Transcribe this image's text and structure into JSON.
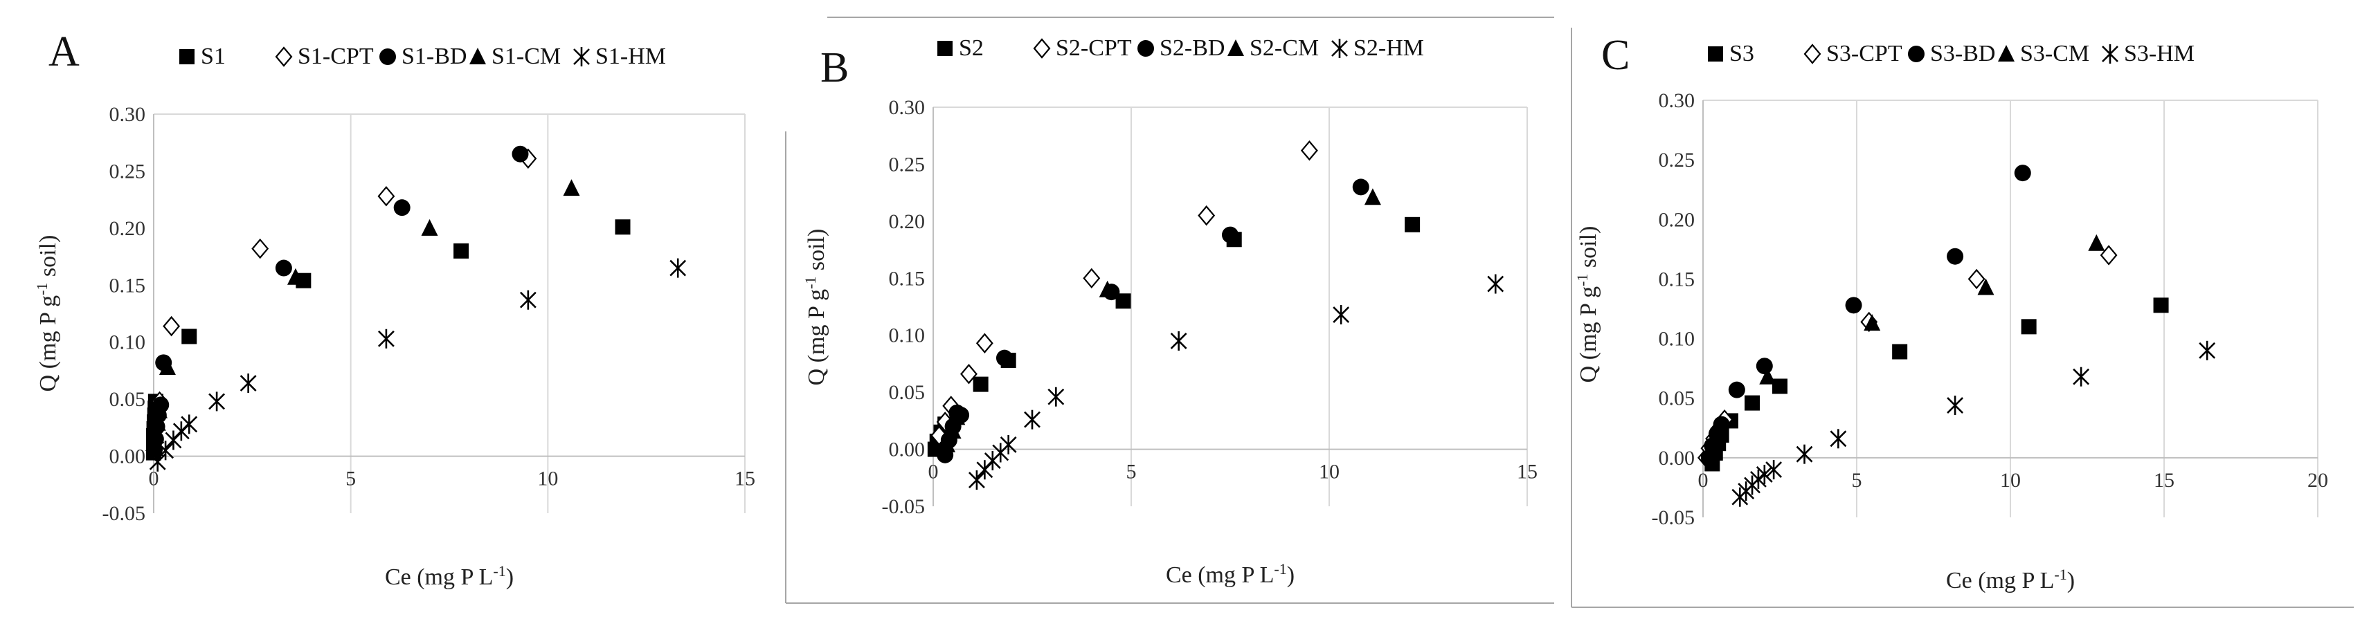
{
  "chart_data": [
    {
      "panel_label": "A",
      "type": "scatter",
      "xlabel": "Ce (mg P L",
      "xlabel_sup": "-1",
      "xlabel_end": ")",
      "ylabel": "Q (mg P g",
      "ylabel_sup": "-1",
      "ylabel_end": " soil)",
      "xlim": [
        0,
        15
      ],
      "ylim": [
        -0.05,
        0.3
      ],
      "xticks": [
        0,
        5,
        10,
        15
      ],
      "yticks": [
        -0.05,
        0.0,
        0.05,
        0.1,
        0.15,
        0.2,
        0.25,
        0.3
      ],
      "ytick_labels": [
        "-0.05",
        "0.00",
        "0.05",
        "0.10",
        "0.15",
        "0.20",
        "0.25",
        "0.30"
      ],
      "grid": "vertical",
      "legend_position": "top",
      "series": [
        {
          "name": "S1",
          "marker": "square",
          "points": [
            [
              0.0,
              0.003
            ],
            [
              0.0,
              0.008
            ],
            [
              0.0,
              0.013
            ],
            [
              0.0,
              0.018
            ],
            [
              0.01,
              0.024
            ],
            [
              0.02,
              0.03
            ],
            [
              0.03,
              0.036
            ],
            [
              0.04,
              0.042
            ],
            [
              0.05,
              0.048
            ],
            [
              0.9,
              0.105
            ],
            [
              3.8,
              0.154
            ],
            [
              7.8,
              0.18
            ],
            [
              11.9,
              0.201
            ]
          ]
        },
        {
          "name": "S1-CPT",
          "marker": "diamond",
          "points": [
            [
              0.01,
              0.005
            ],
            [
              0.03,
              0.016
            ],
            [
              0.06,
              0.027
            ],
            [
              0.1,
              0.038
            ],
            [
              0.15,
              0.048
            ],
            [
              0.45,
              0.114
            ],
            [
              2.7,
              0.182
            ],
            [
              5.9,
              0.228
            ],
            [
              9.5,
              0.261
            ]
          ]
        },
        {
          "name": "S1-BD",
          "marker": "circle",
          "points": [
            [
              0.02,
              0.006
            ],
            [
              0.05,
              0.015
            ],
            [
              0.08,
              0.026
            ],
            [
              0.12,
              0.036
            ],
            [
              0.18,
              0.045
            ],
            [
              0.25,
              0.082
            ],
            [
              3.3,
              0.165
            ],
            [
              6.3,
              0.218
            ],
            [
              9.3,
              0.265
            ]
          ]
        },
        {
          "name": "S1-CM",
          "marker": "triangle",
          "points": [
            [
              0.03,
              0.007
            ],
            [
              0.06,
              0.018
            ],
            [
              0.1,
              0.029
            ],
            [
              0.14,
              0.04
            ],
            [
              0.35,
              0.078
            ],
            [
              3.6,
              0.157
            ],
            [
              7.0,
              0.2
            ],
            [
              10.6,
              0.235
            ]
          ]
        },
        {
          "name": "S1-HM",
          "marker": "asterisk",
          "points": [
            [
              0.1,
              -0.005
            ],
            [
              0.3,
              0.005
            ],
            [
              0.5,
              0.014
            ],
            [
              0.7,
              0.022
            ],
            [
              0.9,
              0.028
            ],
            [
              1.6,
              0.048
            ],
            [
              2.4,
              0.064
            ],
            [
              5.9,
              0.103
            ],
            [
              9.5,
              0.137
            ],
            [
              13.3,
              0.165
            ]
          ]
        }
      ]
    },
    {
      "panel_label": "B",
      "type": "scatter",
      "xlabel": "Ce (mg P L",
      "xlabel_sup": "-1",
      "xlabel_end": ")",
      "ylabel": "Q (mg P g",
      "ylabel_sup": "-1",
      "ylabel_end": " soil)",
      "xlim": [
        0,
        15
      ],
      "ylim": [
        -0.05,
        0.3
      ],
      "xticks": [
        0,
        5,
        10,
        15
      ],
      "yticks": [
        -0.05,
        0.0,
        0.05,
        0.1,
        0.15,
        0.2,
        0.25,
        0.3
      ],
      "ytick_labels": [
        "-0.05",
        "0.00",
        "0.05",
        "0.10",
        "0.15",
        "0.20",
        "0.25",
        "0.30"
      ],
      "grid": "vertical",
      "legend_position": "top",
      "series": [
        {
          "name": "S2",
          "marker": "square",
          "points": [
            [
              0.05,
              0.0
            ],
            [
              0.1,
              0.007
            ],
            [
              0.2,
              0.015
            ],
            [
              0.3,
              0.022
            ],
            [
              1.2,
              0.057
            ],
            [
              1.9,
              0.078
            ],
            [
              4.8,
              0.13
            ],
            [
              7.6,
              0.184
            ],
            [
              12.1,
              0.197
            ]
          ]
        },
        {
          "name": "S2-CPT",
          "marker": "diamond",
          "points": [
            [
              0.15,
              0.012
            ],
            [
              0.3,
              0.024
            ],
            [
              0.45,
              0.038
            ],
            [
              0.9,
              0.066
            ],
            [
              1.3,
              0.093
            ],
            [
              4.0,
              0.15
            ],
            [
              6.9,
              0.205
            ],
            [
              9.5,
              0.262
            ]
          ]
        },
        {
          "name": "S2-BD",
          "marker": "circle",
          "points": [
            [
              0.3,
              -0.005
            ],
            [
              0.4,
              0.008
            ],
            [
              0.5,
              0.02
            ],
            [
              0.6,
              0.032
            ],
            [
              0.7,
              0.03
            ],
            [
              1.8,
              0.08
            ],
            [
              4.5,
              0.138
            ],
            [
              7.5,
              0.188
            ],
            [
              10.8,
              0.23
            ]
          ]
        },
        {
          "name": "S2-CM",
          "marker": "triangle",
          "points": [
            [
              0.35,
              0.004
            ],
            [
              0.5,
              0.016
            ],
            [
              0.6,
              0.028
            ],
            [
              4.4,
              0.14
            ],
            [
              11.1,
              0.221
            ]
          ]
        },
        {
          "name": "S2-HM",
          "marker": "asterisk",
          "points": [
            [
              1.1,
              -0.027
            ],
            [
              1.3,
              -0.018
            ],
            [
              1.5,
              -0.01
            ],
            [
              1.7,
              -0.003
            ],
            [
              1.9,
              0.004
            ],
            [
              2.5,
              0.026
            ],
            [
              3.1,
              0.046
            ],
            [
              6.2,
              0.095
            ],
            [
              10.3,
              0.118
            ],
            [
              14.2,
              0.145
            ]
          ]
        }
      ]
    },
    {
      "panel_label": "C",
      "type": "scatter",
      "xlabel": "Ce (mg P L",
      "xlabel_sup": "-1",
      "xlabel_end": ")",
      "ylabel": "Q (mg P g",
      "ylabel_sup": "-1",
      "ylabel_end": " soil)",
      "xlim": [
        0,
        20
      ],
      "ylim": [
        -0.05,
        0.3
      ],
      "xticks": [
        0,
        5,
        10,
        15,
        20
      ],
      "yticks": [
        -0.05,
        0.0,
        0.05,
        0.1,
        0.15,
        0.2,
        0.25,
        0.3
      ],
      "ytick_labels": [
        "-0.05",
        "0.00",
        "0.05",
        "0.10",
        "0.15",
        "0.20",
        "0.25",
        "0.30"
      ],
      "grid": "vertical",
      "legend_position": "top",
      "series": [
        {
          "name": "S3",
          "marker": "square",
          "points": [
            [
              0.3,
              -0.005
            ],
            [
              0.4,
              0.004
            ],
            [
              0.5,
              0.012
            ],
            [
              0.6,
              0.019
            ],
            [
              0.9,
              0.031
            ],
            [
              1.6,
              0.046
            ],
            [
              2.5,
              0.06
            ],
            [
              6.4,
              0.089
            ],
            [
              10.6,
              0.11
            ],
            [
              14.9,
              0.128
            ]
          ]
        },
        {
          "name": "S3-CPT",
          "marker": "diamond",
          "points": [
            [
              0.1,
              0.0
            ],
            [
              0.2,
              0.008
            ],
            [
              0.35,
              0.016
            ],
            [
              0.5,
              0.024
            ],
            [
              0.7,
              0.032
            ],
            [
              5.4,
              0.114
            ],
            [
              8.9,
              0.15
            ],
            [
              13.2,
              0.17
            ]
          ]
        },
        {
          "name": "S3-BD",
          "marker": "circle",
          "points": [
            [
              0.2,
              0.0
            ],
            [
              0.3,
              0.01
            ],
            [
              0.45,
              0.02
            ],
            [
              0.6,
              0.028
            ],
            [
              1.1,
              0.057
            ],
            [
              2.0,
              0.077
            ],
            [
              4.9,
              0.128
            ],
            [
              8.2,
              0.169
            ],
            [
              10.4,
              0.239
            ]
          ]
        },
        {
          "name": "S3-CM",
          "marker": "triangle",
          "points": [
            [
              0.25,
              0.003
            ],
            [
              0.4,
              0.014
            ],
            [
              0.55,
              0.022
            ],
            [
              2.1,
              0.068
            ],
            [
              5.5,
              0.113
            ],
            [
              9.2,
              0.143
            ],
            [
              12.8,
              0.18
            ]
          ]
        },
        {
          "name": "S3-HM",
          "marker": "asterisk",
          "points": [
            [
              1.2,
              -0.033
            ],
            [
              1.4,
              -0.028
            ],
            [
              1.6,
              -0.023
            ],
            [
              1.8,
              -0.018
            ],
            [
              2.0,
              -0.014
            ],
            [
              2.3,
              -0.01
            ],
            [
              3.3,
              0.003
            ],
            [
              4.4,
              0.016
            ],
            [
              8.2,
              0.044
            ],
            [
              12.3,
              0.068
            ],
            [
              16.4,
              0.09
            ]
          ]
        }
      ]
    }
  ]
}
